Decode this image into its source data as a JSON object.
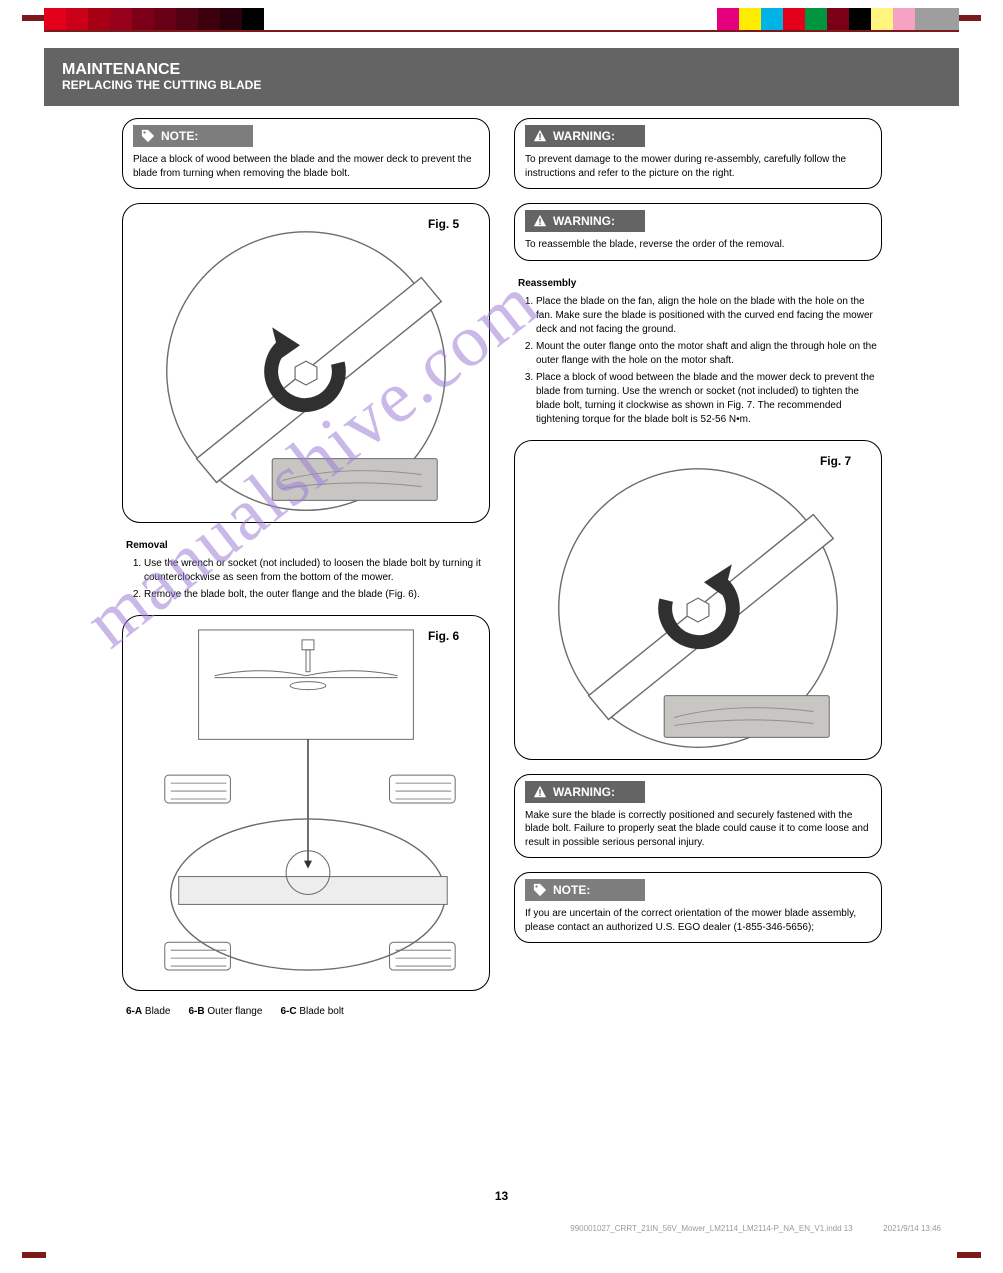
{
  "page": {
    "number": "13",
    "header_title": "MAINTENANCE",
    "header_sub": "REPLACING THE CUTTING BLADE",
    "footer_meta_left": "990001027_CRRT_21IN_56V_Mower_LM2114_LM2114-P_NA_EN_V1.indd   13",
    "footer_meta_right": "2021/9/14   13:46"
  },
  "watermark": "manualshive.com",
  "swatches_left": [
    "#e2001a",
    "#c90018",
    "#a70014",
    "#97001a",
    "#7b0017",
    "#670015",
    "#520012",
    "#3d000f",
    "#2a000c",
    "#000000"
  ],
  "swatches_right": [
    "#e4007f",
    "#ffed00",
    "#00b3e6",
    "#e2001a",
    "#009640",
    "#7b0017",
    "#000000",
    "#fff57f",
    "#f7a1c4",
    "#9e9e9e",
    "#9e9e9e"
  ],
  "labels": {
    "note": "NOTE:",
    "warning": "WARNING:"
  },
  "left_col": {
    "note1": "Place a block of wood between the blade and the mower deck to prevent the blade from turning when removing the blade bolt.",
    "fig5_label": "Fig. 5",
    "removal_lead": "Removal",
    "removal_steps": [
      "Use the wrench or socket (not included) to loosen the blade bolt by turning it counterclockwise as seen from the bottom of the mower.",
      "Remove the blade bolt, the outer flange and the blade (Fig. 6)."
    ],
    "fig6": {
      "label": "Fig. 6",
      "part_a_text": "Blade",
      "part_a_code": "6-A",
      "part_b_text": "Outer flange",
      "part_b_code": "6-B",
      "part_c_text": "Blade bolt",
      "part_c_code": "6-C"
    }
  },
  "right_col": {
    "warning1": "To prevent damage to the mower during re-assembly, carefully follow the instructions and refer to the picture on the right.",
    "warning2": "To reassemble the blade, reverse the order of the removal.",
    "reassembly_lead": "Reassembly",
    "reassembly_steps": [
      "Place the blade on the fan, align the hole on the blade with the hole on the fan. Make sure the blade is positioned with the curved end facing the mower deck and not facing the ground.",
      "Mount the outer flange onto the motor shaft and align the through hole on the outer flange with the hole on the motor shaft.",
      "Place a block of wood between the blade and the mower deck to prevent the blade from turning. Use the wrench or socket (not included) to tighten the blade bolt, turning it clockwise as shown in Fig. 7. The recommended tightening torque for the blade bolt is 52-56 N•m."
    ],
    "fig7_label": "Fig. 7",
    "warning3": "Make sure the blade is correctly positioned and securely fastened with the blade bolt. Failure to properly seat the blade could cause it to come loose and result in possible serious personal injury.",
    "note2": "If you are uncertain of the correct orientation of the mower blade assembly, please contact an authorized U.S. EGO dealer (1-855-346-5656);"
  }
}
